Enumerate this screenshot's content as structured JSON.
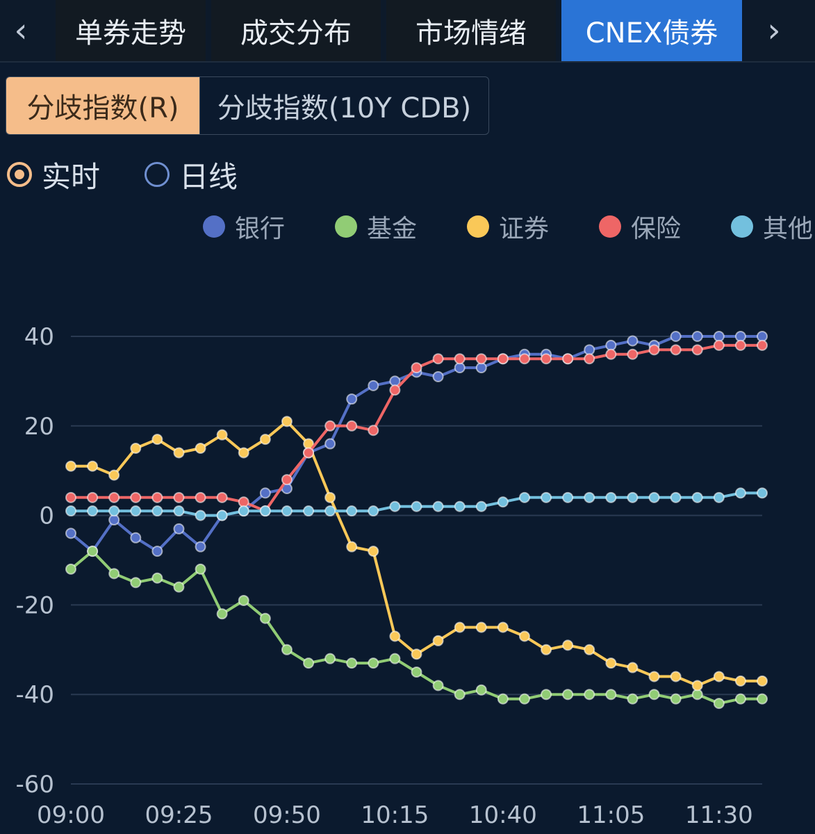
{
  "tabs": {
    "prev_icon": "chevron-left-icon",
    "next_icon": "chevron-right-icon",
    "items": [
      {
        "label": "单券走势"
      },
      {
        "label": "成交分布"
      },
      {
        "label": "市场情绪"
      },
      {
        "label": "CNEX债券"
      }
    ],
    "active_index": 3
  },
  "segment": {
    "options": [
      "分歧指数(R)",
      "分歧指数(10Y CDB)"
    ],
    "selected": "分歧指数(R)"
  },
  "radio": {
    "options": [
      "实时",
      "日线"
    ],
    "selected": "实时"
  },
  "colors": {
    "background": "#0b1a2e",
    "active_tab": "#2a74d6",
    "active_segment": "#f5bd8a"
  },
  "chart_data": {
    "type": "line",
    "x": [
      "09:00",
      "09:05",
      "09:10",
      "09:15",
      "09:20",
      "09:25",
      "09:30",
      "09:35",
      "09:40",
      "09:45",
      "09:50",
      "09:55",
      "10:00",
      "10:05",
      "10:10",
      "10:15",
      "10:20",
      "10:25",
      "10:30",
      "10:35",
      "10:40",
      "10:45",
      "10:50",
      "10:55",
      "11:00",
      "11:05",
      "11:10",
      "11:15",
      "11:20",
      "11:25",
      "11:30",
      "11:35",
      "11:40"
    ],
    "xticks": [
      "09:00",
      "09:25",
      "09:50",
      "10:15",
      "10:40",
      "11:05",
      "11:30"
    ],
    "yticks": [
      40,
      20,
      0,
      -20,
      -40,
      -60
    ],
    "ylim": [
      -60,
      40
    ],
    "grid": true,
    "legend_position": "top",
    "series": [
      {
        "name": "银行",
        "color": "#5470c6",
        "values": [
          -4,
          -8,
          -1,
          -5,
          -8,
          -3,
          -7,
          0,
          1,
          5,
          6,
          14,
          16,
          26,
          29,
          30,
          32,
          31,
          33,
          33,
          35,
          36,
          36,
          35,
          37,
          38,
          39,
          38,
          40,
          40,
          40,
          40,
          40
        ]
      },
      {
        "name": "基金",
        "color": "#91cc75",
        "values": [
          -12,
          -8,
          -13,
          -15,
          -14,
          -16,
          -12,
          -22,
          -19,
          -23,
          -30,
          -33,
          -32,
          -33,
          -33,
          -32,
          -35,
          -38,
          -40,
          -39,
          -41,
          -41,
          -40,
          -40,
          -40,
          -40,
          -41,
          -40,
          -41,
          -40,
          -42,
          -41,
          -41
        ]
      },
      {
        "name": "证券",
        "color": "#fac858",
        "values": [
          11,
          11,
          9,
          15,
          17,
          14,
          15,
          18,
          14,
          17,
          21,
          16,
          4,
          -7,
          -8,
          -27,
          -31,
          -28,
          -25,
          -25,
          -25,
          -27,
          -30,
          -29,
          -30,
          -33,
          -34,
          -36,
          -36,
          -38,
          -36,
          -37,
          -37
        ]
      },
      {
        "name": "保险",
        "color": "#ee6666",
        "values": [
          4,
          4,
          4,
          4,
          4,
          4,
          4,
          4,
          3,
          1,
          8,
          14,
          20,
          20,
          19,
          28,
          33,
          35,
          35,
          35,
          35,
          35,
          35,
          35,
          35,
          36,
          36,
          37,
          37,
          37,
          38,
          38,
          38
        ]
      },
      {
        "name": "其他",
        "color": "#73c0de",
        "values": [
          1,
          1,
          1,
          1,
          1,
          1,
          0,
          0,
          1,
          1,
          1,
          1,
          1,
          1,
          1,
          2,
          2,
          2,
          2,
          2,
          3,
          4,
          4,
          4,
          4,
          4,
          4,
          4,
          4,
          4,
          4,
          5,
          5
        ]
      }
    ]
  }
}
